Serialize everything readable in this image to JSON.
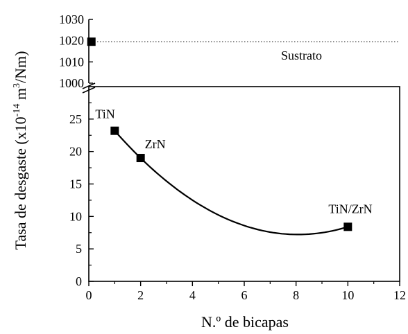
{
  "chart_data": {
    "type": "scatter",
    "xlabel": "N.º de bicapas",
    "ylabel": {
      "prefix": "Tasa de desgaste (x10",
      "exp1": "-14",
      "mid": " m",
      "exp2": "3",
      "suffix": "/Nm)"
    },
    "xlim": [
      0,
      12
    ],
    "x_ticks": [
      "0",
      "2",
      "4",
      "6",
      "8",
      "10",
      "12"
    ],
    "y_lower": {
      "range": [
        0,
        30
      ],
      "ticks": [
        "0",
        "5",
        "10",
        "15",
        "20",
        "25"
      ]
    },
    "y_upper": {
      "range": [
        1000,
        1030
      ],
      "ticks": [
        "1000",
        "1010",
        "1020",
        "1030"
      ]
    },
    "axis_break": true,
    "series": [
      {
        "points": [
          {
            "x": 1,
            "y": 23.2,
            "label": "TiN"
          },
          {
            "x": 2,
            "y": 19.0,
            "label": "ZrN"
          },
          {
            "x": 10,
            "y": 8.4,
            "label": "TiN/ZrN"
          }
        ]
      },
      {
        "points": [
          {
            "x": 0.1,
            "y": 1019.5
          }
        ]
      }
    ],
    "reference_line": {
      "y": 1019.5,
      "label": "Sustrato",
      "style": "dotted"
    },
    "fit_curve": {
      "style": "solid"
    }
  }
}
